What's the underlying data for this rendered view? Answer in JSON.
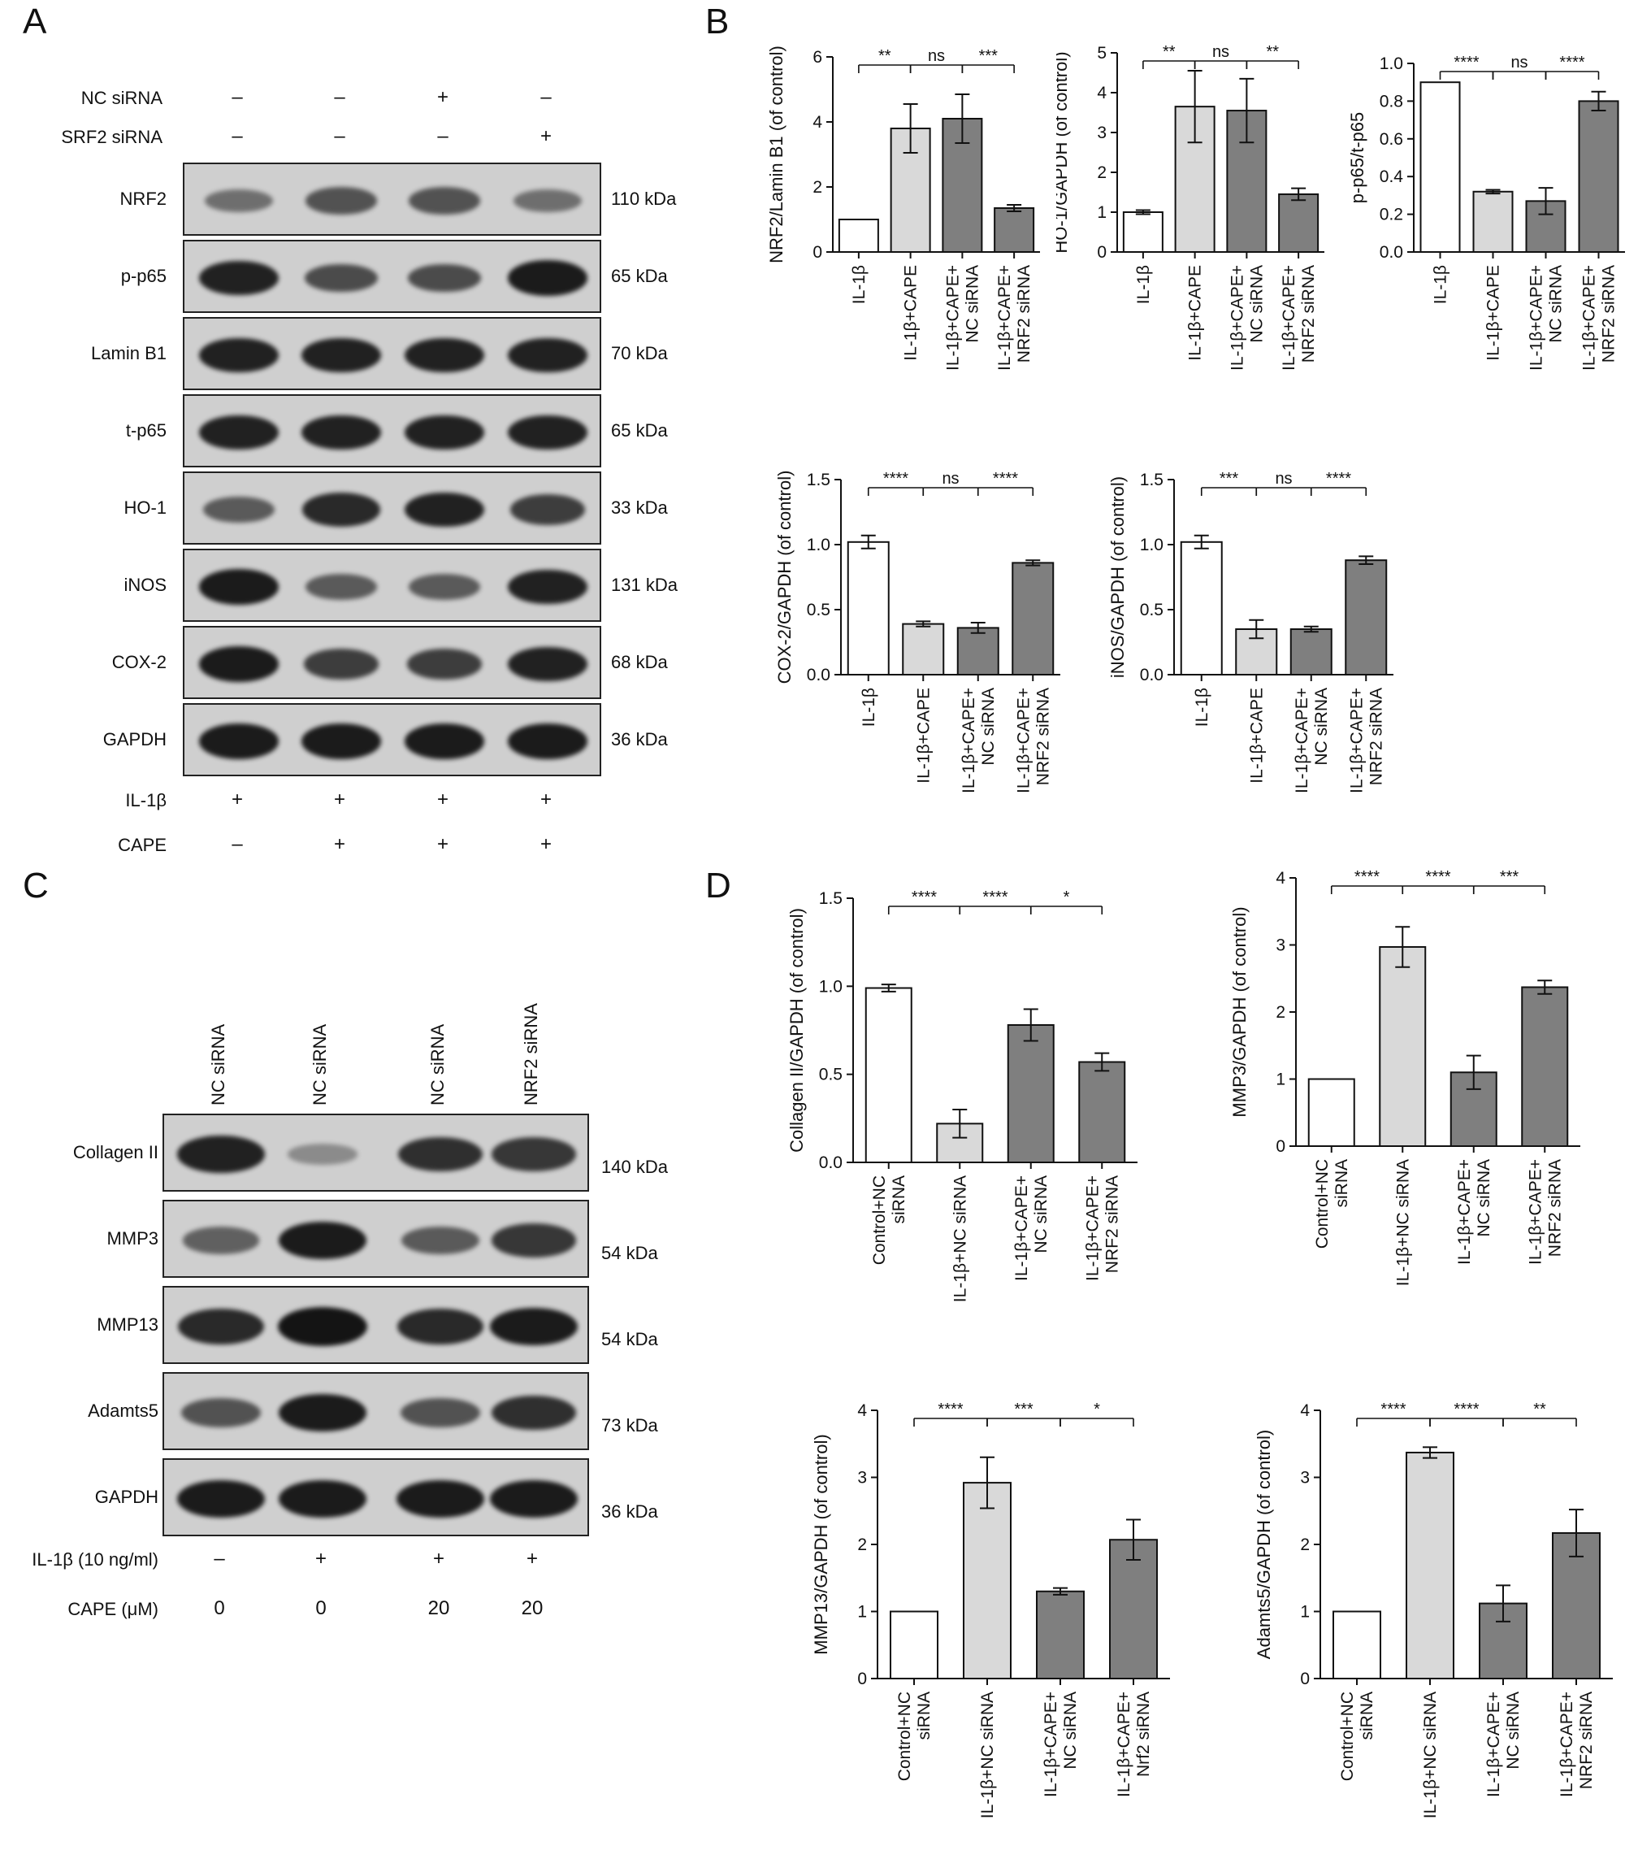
{
  "panels": {
    "a": "A",
    "b": "B",
    "c": "C",
    "d": "D"
  },
  "panelA": {
    "rows_top": [
      {
        "label": "NC siRNA",
        "values": [
          "–",
          "–",
          "+",
          "–"
        ]
      },
      {
        "label": "SRF2 siRNA",
        "values": [
          "–",
          "–",
          "–",
          "+"
        ]
      }
    ],
    "blots": [
      {
        "label": "NRF2",
        "kda": "110 kDa",
        "intensity": [
          0.35,
          0.55,
          0.55,
          0.35
        ]
      },
      {
        "label": "p-p65",
        "kda": "65 kDa",
        "intensity": [
          0.9,
          0.6,
          0.6,
          0.95
        ]
      },
      {
        "label": "Lamin B1",
        "kda": "70 kDa",
        "intensity": [
          0.9,
          0.9,
          0.9,
          0.9
        ]
      },
      {
        "label": "t-p65",
        "kda": "65 kDa",
        "intensity": [
          0.9,
          0.9,
          0.9,
          0.9
        ]
      },
      {
        "label": "HO-1",
        "kda": "33 kDa",
        "intensity": [
          0.5,
          0.85,
          0.9,
          0.7
        ]
      },
      {
        "label": "iNOS",
        "kda": "131 kDa",
        "intensity": [
          0.95,
          0.5,
          0.5,
          0.9
        ]
      },
      {
        "label": "COX-2",
        "kda": "68 kDa",
        "intensity": [
          0.95,
          0.7,
          0.7,
          0.9
        ]
      },
      {
        "label": "GAPDH",
        "kda": "36 kDa",
        "intensity": [
          0.95,
          0.95,
          0.95,
          0.95
        ]
      }
    ],
    "rows_bottom": [
      {
        "label": "IL-1β",
        "values": [
          "+",
          "+",
          "+",
          "+"
        ]
      },
      {
        "label": "CAPE",
        "values": [
          "–",
          "+",
          "+",
          "+"
        ]
      }
    ]
  },
  "panelC": {
    "lane_labels": [
      "NC siRNA",
      "NC siRNA",
      "NC siRNA",
      "NRF2 siRNA"
    ],
    "blots": [
      {
        "label": "Collagen II",
        "kda": "140 kDa",
        "intensity": [
          0.9,
          0.15,
          0.8,
          0.75
        ]
      },
      {
        "label": "MMP3",
        "kda": "54 kDa",
        "intensity": [
          0.45,
          0.95,
          0.5,
          0.75
        ]
      },
      {
        "label": "MMP13",
        "kda": "54 kDa",
        "intensity": [
          0.85,
          1.0,
          0.85,
          0.95
        ]
      },
      {
        "label": "Adamts5",
        "kda": "73 kDa",
        "intensity": [
          0.55,
          0.95,
          0.55,
          0.8
        ]
      },
      {
        "label": "GAPDH",
        "kda": "36 kDa",
        "intensity": [
          0.95,
          0.95,
          0.95,
          0.95
        ]
      }
    ],
    "rows_bottom": [
      {
        "label": "IL-1β (10 ng/ml)",
        "values": [
          "–",
          "+",
          "+",
          "+"
        ]
      },
      {
        "label": "CAPE (μM)",
        "values": [
          "0",
          "0",
          "20",
          "20"
        ]
      }
    ]
  },
  "chart_data": [
    {
      "id": "nrf2",
      "type": "bar",
      "ylabel": "NRF2/Lamin B1 (of control)",
      "ylim": [
        0,
        6
      ],
      "yticks": [
        0,
        2,
        4,
        6
      ],
      "categories": [
        "IL-1β",
        "IL-1β+CAPE",
        "IL-1β+CAPE+\nNC siRNA",
        "IL-1β+CAPE+\nNRF2 siRNA"
      ],
      "values": [
        1.0,
        3.8,
        4.1,
        1.35
      ],
      "errors": [
        0,
        0.75,
        0.75,
        0.1
      ],
      "sig": [
        "**",
        "ns",
        "***"
      ]
    },
    {
      "id": "ho1",
      "type": "bar",
      "ylabel": "HO-1/GAPDH (of control)",
      "ylim": [
        0,
        5
      ],
      "yticks": [
        0,
        1,
        2,
        3,
        4,
        5
      ],
      "categories": [
        "IL-1β",
        "IL-1β+CAPE",
        "IL-1β+CAPE+\nNC siRNA",
        "IL-1β+CAPE+\nNRF2 siRNA"
      ],
      "values": [
        1.0,
        3.65,
        3.55,
        1.45
      ],
      "errors": [
        0.05,
        0.9,
        0.8,
        0.15
      ],
      "sig": [
        "**",
        "ns",
        "**"
      ]
    },
    {
      "id": "pp65",
      "type": "bar",
      "ylabel": "p-p65/t-p65",
      "ylim": [
        0,
        1.0
      ],
      "yticks": [
        0.0,
        0.2,
        0.4,
        0.6,
        0.8,
        1.0
      ],
      "categories": [
        "IL-1β",
        "IL-1β+CAPE",
        "IL-1β+CAPE+\nNC siRNA",
        "IL-1β+CAPE+\nNRF2 siRNA"
      ],
      "values": [
        0.9,
        0.32,
        0.27,
        0.8
      ],
      "errors": [
        0,
        0.01,
        0.07,
        0.05
      ],
      "sig": [
        "****",
        "ns",
        "****"
      ]
    },
    {
      "id": "cox2",
      "type": "bar",
      "ylabel": "COX-2/GAPDH (of control)",
      "ylim": [
        0,
        1.5
      ],
      "yticks": [
        0.0,
        0.5,
        1.0,
        1.5
      ],
      "categories": [
        "IL-1β",
        "IL-1β+CAPE",
        "IL-1β+CAPE+\nNC siRNA",
        "IL-1β+CAPE+\nNRF2 siRNA"
      ],
      "values": [
        1.02,
        0.39,
        0.36,
        0.86
      ],
      "errors": [
        0.05,
        0.02,
        0.04,
        0.02
      ],
      "sig": [
        "****",
        "ns",
        "****"
      ]
    },
    {
      "id": "inos",
      "type": "bar",
      "ylabel": "iNOS/GAPDH (of control)",
      "ylim": [
        0,
        1.5
      ],
      "yticks": [
        0.0,
        0.5,
        1.0,
        1.5
      ],
      "categories": [
        "IL-1β",
        "IL-1β+CAPE",
        "IL-1β+CAPE+\nNC siRNA",
        "IL-1β+CAPE+\nNRF2 siRNA"
      ],
      "values": [
        1.02,
        0.35,
        0.35,
        0.88
      ],
      "errors": [
        0.05,
        0.07,
        0.02,
        0.03
      ],
      "sig": [
        "***",
        "ns",
        "****"
      ]
    },
    {
      "id": "col2",
      "type": "bar",
      "ylabel": "Collagen II/GAPDH (of control)",
      "ylim": [
        0,
        1.5
      ],
      "yticks": [
        0.0,
        0.5,
        1.0,
        1.5
      ],
      "categories": [
        "Control+NC\nsiRNA",
        "IL-1β+NC siRNA",
        "IL-1β+CAPE+\nNC siRNA",
        "IL-1β+CAPE+\nNRF2 siRNA"
      ],
      "values": [
        0.99,
        0.22,
        0.78,
        0.57
      ],
      "errors": [
        0.02,
        0.08,
        0.09,
        0.05
      ],
      "sig": [
        "****",
        "****",
        "*"
      ]
    },
    {
      "id": "mmp3",
      "type": "bar",
      "ylabel": "MMP3/GAPDH (of control)",
      "ylim": [
        0,
        4
      ],
      "yticks": [
        0,
        1,
        2,
        3,
        4
      ],
      "categories": [
        "Control+NC\nsiRNA",
        "IL-1β+NC siRNA",
        "IL-1β+CAPE+\nNC siRNA",
        "IL-1β+CAPE+\nNRF2 siRNA"
      ],
      "values": [
        1.0,
        2.97,
        1.1,
        2.37
      ],
      "errors": [
        0,
        0.3,
        0.25,
        0.1
      ],
      "sig": [
        "****",
        "****",
        "***"
      ]
    },
    {
      "id": "mmp13",
      "type": "bar",
      "ylabel": "MMP13/GAPDH (of control)",
      "ylim": [
        0,
        4
      ],
      "yticks": [
        0,
        1,
        2,
        3,
        4
      ],
      "categories": [
        "Control+NC\nsiRNA",
        "IL-1β+NC siRNA",
        "IL-1β+CAPE+\nNC siRNA",
        "IL-1β+CAPE+\nNrf2 siRNA"
      ],
      "values": [
        1.0,
        2.92,
        1.3,
        2.07
      ],
      "errors": [
        0,
        0.38,
        0.05,
        0.3
      ],
      "sig": [
        "****",
        "***",
        "*"
      ]
    },
    {
      "id": "adamts5",
      "type": "bar",
      "ylabel": "Adamts5/GAPDH (of control)",
      "ylim": [
        0,
        4
      ],
      "yticks": [
        0,
        1,
        2,
        3,
        4
      ],
      "categories": [
        "Control+NC\nsiRNA",
        "IL-1β+NC siRNA",
        "IL-1β+CAPE+\nNC siRNA",
        "IL-1β+CAPE+\nNRF2 siRNA"
      ],
      "values": [
        1.0,
        3.37,
        1.12,
        2.17
      ],
      "errors": [
        0,
        0.08,
        0.27,
        0.35
      ],
      "sig": [
        "****",
        "****",
        "**"
      ]
    }
  ],
  "colors": {
    "bar1": "#ffffff",
    "bar2": "#d9d9d9",
    "bar3": "#7f7f7f",
    "bar4": "#7f7f7f",
    "stroke": "#111111"
  }
}
